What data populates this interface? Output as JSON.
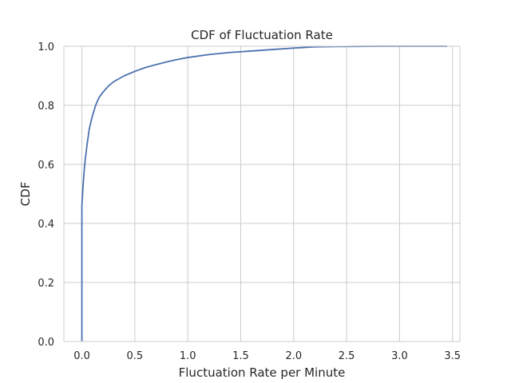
{
  "chart_data": {
    "type": "line",
    "title": "CDF of Fluctuation Rate",
    "xlabel": "Fluctuation Rate per Minute",
    "ylabel": "CDF",
    "xlim": [
      -0.17,
      3.57
    ],
    "ylim": [
      0.0,
      1.0
    ],
    "xticks": [
      0.0,
      0.5,
      1.0,
      1.5,
      2.0,
      2.5,
      3.0,
      3.5
    ],
    "xtick_labels": [
      "0.0",
      "0.5",
      "1.0",
      "1.5",
      "2.0",
      "2.5",
      "3.0",
      "3.5"
    ],
    "yticks": [
      0.0,
      0.2,
      0.4,
      0.6,
      0.8,
      1.0
    ],
    "ytick_labels": [
      "0.0",
      "0.2",
      "0.4",
      "0.6",
      "0.8",
      "1.0"
    ],
    "grid": true,
    "colors": {
      "line": "#4c72b0",
      "grid": "#cccccc",
      "text": "#262626"
    },
    "series": [
      {
        "name": "CDF",
        "x": [
          0.0,
          0.0,
          0.0,
          0.005,
          0.01,
          0.02,
          0.03,
          0.05,
          0.07,
          0.1,
          0.13,
          0.16,
          0.2,
          0.25,
          0.3,
          0.4,
          0.5,
          0.6,
          0.7,
          0.8,
          0.9,
          1.0,
          1.2,
          1.4,
          1.6,
          1.8,
          2.0,
          2.2,
          2.4,
          2.6,
          2.8,
          3.0,
          3.2,
          3.45
        ],
        "y": [
          0.0,
          0.45,
          0.46,
          0.49,
          0.52,
          0.57,
          0.61,
          0.67,
          0.72,
          0.765,
          0.8,
          0.825,
          0.845,
          0.865,
          0.88,
          0.9,
          0.915,
          0.928,
          0.938,
          0.947,
          0.955,
          0.962,
          0.972,
          0.979,
          0.984,
          0.989,
          0.994,
          0.998,
          0.999,
          0.9995,
          1.0,
          1.0,
          1.0,
          1.0
        ]
      }
    ]
  }
}
